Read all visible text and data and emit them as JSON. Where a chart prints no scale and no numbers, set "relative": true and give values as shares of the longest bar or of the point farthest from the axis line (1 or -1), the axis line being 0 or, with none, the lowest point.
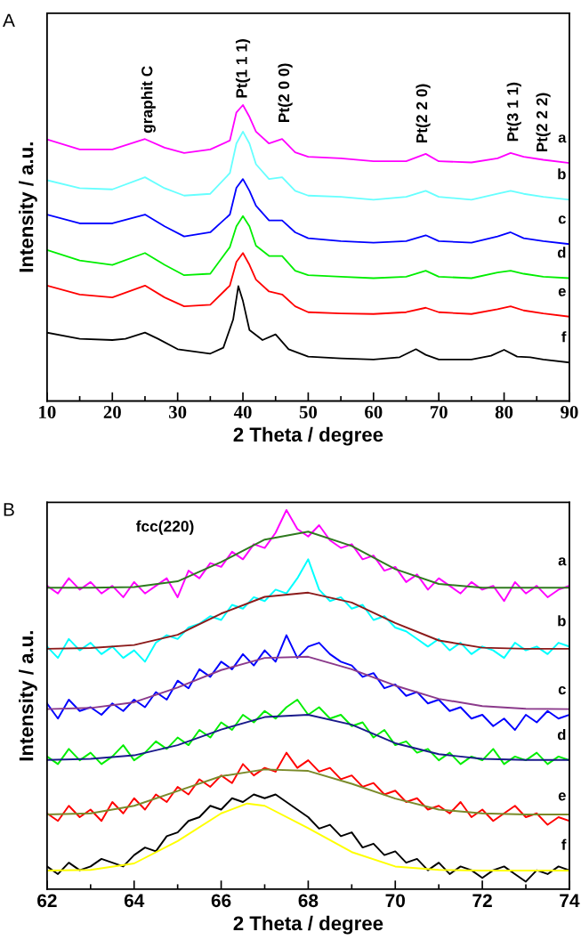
{
  "chart_data": [
    {
      "type": "line",
      "title": "A",
      "xlabel": "2 Theta / degree",
      "ylabel": "Intensity / a.u.",
      "relative": true,
      "xlim": [
        10,
        90
      ],
      "xticks": [
        10,
        20,
        30,
        40,
        50,
        60,
        70,
        80,
        90
      ],
      "tick_labels": "x",
      "grid": false,
      "legend": false,
      "annotations": [
        "graphit C",
        "Pt(1 1 1)",
        "Pt(2 0 0)",
        "Pt(2 2 0)",
        "Pt(3 1 1)",
        "Pt(2 2 2)"
      ],
      "series": [
        {
          "name": "a",
          "color": "#ff00ff",
          "x": [
            10,
            15,
            20,
            25,
            28,
            31,
            35,
            38,
            39,
            40,
            41,
            42,
            44,
            46,
            48,
            50,
            55,
            60,
            65,
            68,
            70,
            75,
            79,
            81,
            83,
            86,
            90
          ],
          "values": [
            0.884,
            0.85,
            0.85,
            0.885,
            0.856,
            0.838,
            0.85,
            0.88,
            0.975,
            1.0,
            0.96,
            0.91,
            0.87,
            0.885,
            0.84,
            0.825,
            0.82,
            0.81,
            0.81,
            0.835,
            0.81,
            0.806,
            0.82,
            0.838,
            0.825,
            0.815,
            0.804
          ]
        },
        {
          "name": "b",
          "color": "#66ffff",
          "x": [
            10,
            15,
            20,
            25,
            28,
            31,
            35,
            38,
            39,
            40,
            41,
            42,
            44,
            46,
            48,
            50,
            55,
            60,
            65,
            68,
            70,
            75,
            79,
            81,
            83,
            86,
            90
          ],
          "values": [
            0.746,
            0.719,
            0.715,
            0.756,
            0.719,
            0.694,
            0.7,
            0.77,
            0.87,
            0.91,
            0.87,
            0.8,
            0.75,
            0.756,
            0.71,
            0.694,
            0.69,
            0.68,
            0.69,
            0.71,
            0.69,
            0.68,
            0.7,
            0.71,
            0.7,
            0.69,
            0.68
          ]
        },
        {
          "name": "c",
          "color": "#0000ff",
          "x": [
            10,
            15,
            20,
            25,
            28,
            31,
            35,
            38,
            39,
            40,
            41,
            42,
            44,
            46,
            48,
            50,
            55,
            60,
            65,
            68,
            70,
            75,
            79,
            81,
            83,
            86,
            90
          ],
          "values": [
            0.63,
            0.6,
            0.6,
            0.63,
            0.59,
            0.556,
            0.57,
            0.63,
            0.72,
            0.75,
            0.71,
            0.66,
            0.61,
            0.61,
            0.57,
            0.55,
            0.54,
            0.535,
            0.54,
            0.56,
            0.54,
            0.535,
            0.556,
            0.57,
            0.55,
            0.54,
            0.53
          ]
        },
        {
          "name": "d",
          "color": "#00ee00",
          "x": [
            10,
            15,
            20,
            25,
            28,
            31,
            35,
            38,
            39,
            40,
            41,
            42,
            44,
            46,
            48,
            50,
            55,
            60,
            65,
            68,
            70,
            75,
            79,
            81,
            83,
            86,
            90
          ],
          "values": [
            0.51,
            0.475,
            0.46,
            0.5,
            0.46,
            0.425,
            0.43,
            0.52,
            0.59,
            0.625,
            0.59,
            0.525,
            0.49,
            0.49,
            0.44,
            0.425,
            0.42,
            0.415,
            0.42,
            0.44,
            0.42,
            0.415,
            0.434,
            0.44,
            0.43,
            0.42,
            0.415
          ]
        },
        {
          "name": "e",
          "color": "#ff0000",
          "x": [
            10,
            15,
            20,
            25,
            28,
            31,
            35,
            38,
            39,
            40,
            41,
            42,
            44,
            46,
            48,
            50,
            55,
            60,
            65,
            68,
            70,
            75,
            79,
            81,
            83,
            86,
            90
          ],
          "values": [
            0.39,
            0.36,
            0.35,
            0.39,
            0.35,
            0.32,
            0.325,
            0.39,
            0.47,
            0.5,
            0.46,
            0.41,
            0.37,
            0.36,
            0.32,
            0.3,
            0.296,
            0.294,
            0.3,
            0.315,
            0.3,
            0.294,
            0.31,
            0.32,
            0.306,
            0.296,
            0.285
          ]
        },
        {
          "name": "f",
          "color": "#000000",
          "x": [
            10,
            15,
            20,
            22,
            25,
            27,
            30,
            35,
            37,
            38.5,
            39.3,
            40,
            41,
            43,
            45,
            47,
            50,
            55,
            60,
            64,
            66.5,
            68,
            70,
            75,
            78,
            80,
            82,
            84,
            86,
            90
          ],
          "values": [
            0.231,
            0.21,
            0.206,
            0.21,
            0.231,
            0.21,
            0.175,
            0.16,
            0.18,
            0.275,
            0.388,
            0.338,
            0.24,
            0.206,
            0.225,
            0.175,
            0.15,
            0.144,
            0.14,
            0.148,
            0.175,
            0.156,
            0.14,
            0.14,
            0.153,
            0.173,
            0.15,
            0.148,
            0.14,
            0.13
          ]
        }
      ]
    },
    {
      "type": "line",
      "title": "B",
      "xlabel": "2 Theta / degree",
      "ylabel": "Intensity / a.u.",
      "relative": true,
      "xlim": [
        62,
        74
      ],
      "xticks": [
        62,
        64,
        66,
        68,
        70,
        72,
        74
      ],
      "tick_labels": "x",
      "grid": false,
      "legend": false,
      "annotations": [
        "fcc(220)"
      ],
      "series": [
        {
          "name": "a",
          "color": "#ff00ff",
          "x": [
            62,
            62.25,
            62.5,
            62.75,
            63,
            63.25,
            63.5,
            63.75,
            64,
            64.25,
            64.5,
            64.75,
            65,
            65.25,
            65.5,
            65.75,
            66,
            66.25,
            66.5,
            66.75,
            67,
            67.25,
            67.5,
            67.75,
            68,
            68.25,
            68.5,
            68.75,
            69,
            69.25,
            69.5,
            69.75,
            70,
            70.25,
            70.5,
            70.75,
            71,
            71.25,
            71.5,
            71.75,
            72,
            72.25,
            72.5,
            72.75,
            73,
            73.25,
            73.5,
            73.75,
            74
          ],
          "values": [
            0.8,
            0.78,
            0.82,
            0.79,
            0.81,
            0.78,
            0.8,
            0.77,
            0.81,
            0.78,
            0.8,
            0.82,
            0.77,
            0.84,
            0.82,
            0.86,
            0.85,
            0.89,
            0.87,
            0.91,
            0.9,
            0.94,
            1.0,
            0.95,
            0.93,
            0.96,
            0.92,
            0.9,
            0.91,
            0.87,
            0.88,
            0.84,
            0.85,
            0.81,
            0.83,
            0.79,
            0.82,
            0.8,
            0.78,
            0.81,
            0.79,
            0.8,
            0.76,
            0.81,
            0.78,
            0.8,
            0.77,
            0.79,
            0.8
          ]
        },
        {
          "color": "#2f7a1f",
          "x": [
            62,
            63,
            64,
            65,
            66,
            67,
            68,
            69,
            70,
            71,
            72,
            73,
            74
          ],
          "values": [
            0.795,
            0.795,
            0.797,
            0.812,
            0.863,
            0.922,
            0.943,
            0.905,
            0.844,
            0.805,
            0.795,
            0.795,
            0.795
          ]
        },
        {
          "name": "b",
          "color": "#00ffff",
          "x": [
            62,
            62.25,
            62.5,
            62.75,
            63,
            63.25,
            63.5,
            63.75,
            64,
            64.25,
            64.5,
            64.75,
            65,
            65.25,
            65.5,
            65.75,
            66,
            66.25,
            66.5,
            66.75,
            67,
            67.25,
            67.5,
            67.75,
            68,
            68.25,
            68.5,
            68.75,
            69,
            69.25,
            69.5,
            69.75,
            70,
            70.25,
            70.5,
            70.75,
            71,
            71.25,
            71.5,
            71.75,
            72,
            72.25,
            72.5,
            72.75,
            73,
            73.25,
            73.5,
            73.75,
            74
          ],
          "values": [
            0.64,
            0.61,
            0.66,
            0.63,
            0.65,
            0.62,
            0.64,
            0.61,
            0.63,
            0.6,
            0.65,
            0.67,
            0.66,
            0.69,
            0.7,
            0.72,
            0.71,
            0.75,
            0.74,
            0.77,
            0.76,
            0.79,
            0.78,
            0.82,
            0.87,
            0.79,
            0.76,
            0.77,
            0.74,
            0.75,
            0.71,
            0.72,
            0.69,
            0.68,
            0.66,
            0.64,
            0.66,
            0.63,
            0.65,
            0.62,
            0.64,
            0.63,
            0.61,
            0.65,
            0.63,
            0.64,
            0.62,
            0.65,
            0.64
          ]
        },
        {
          "color": "#8b1a1a",
          "x": [
            62,
            63,
            64,
            65,
            66,
            67,
            68,
            69,
            70,
            71,
            72,
            73,
            74
          ],
          "values": [
            0.634,
            0.636,
            0.644,
            0.671,
            0.727,
            0.771,
            0.782,
            0.756,
            0.702,
            0.656,
            0.637,
            0.634,
            0.634
          ]
        },
        {
          "name": "c",
          "color": "#0000ff",
          "x": [
            62,
            62.25,
            62.5,
            62.75,
            63,
            63.25,
            63.5,
            63.75,
            64,
            64.25,
            64.5,
            64.75,
            65,
            65.25,
            65.5,
            65.75,
            66,
            66.25,
            66.5,
            66.75,
            67,
            67.25,
            67.5,
            67.75,
            68,
            68.25,
            68.5,
            68.75,
            69,
            69.25,
            69.5,
            69.75,
            70,
            70.25,
            70.5,
            70.75,
            71,
            71.25,
            71.5,
            71.75,
            72,
            72.25,
            72.5,
            72.75,
            73,
            73.25,
            73.5,
            73.75,
            74
          ],
          "values": [
            0.49,
            0.45,
            0.5,
            0.47,
            0.48,
            0.46,
            0.49,
            0.47,
            0.5,
            0.48,
            0.52,
            0.5,
            0.55,
            0.53,
            0.58,
            0.56,
            0.6,
            0.58,
            0.62,
            0.59,
            0.63,
            0.6,
            0.67,
            0.61,
            0.64,
            0.65,
            0.62,
            0.6,
            0.59,
            0.56,
            0.57,
            0.53,
            0.54,
            0.51,
            0.52,
            0.49,
            0.5,
            0.47,
            0.48,
            0.45,
            0.46,
            0.43,
            0.45,
            0.42,
            0.46,
            0.44,
            0.47,
            0.45,
            0.46
          ]
        },
        {
          "color": "#8b3a8b",
          "x": [
            62,
            63,
            64,
            65,
            66,
            67,
            68,
            69,
            70,
            71,
            72,
            73,
            74
          ],
          "values": [
            0.475,
            0.478,
            0.493,
            0.532,
            0.578,
            0.61,
            0.613,
            0.58,
            0.537,
            0.502,
            0.483,
            0.476,
            0.475
          ]
        },
        {
          "name": "d",
          "color": "#00ee00",
          "x": [
            62,
            62.25,
            62.5,
            62.75,
            63,
            63.25,
            63.5,
            63.75,
            64,
            64.25,
            64.5,
            64.75,
            65,
            65.25,
            65.5,
            65.75,
            66,
            66.25,
            66.5,
            66.75,
            67,
            67.25,
            67.5,
            67.75,
            68,
            68.25,
            68.5,
            68.75,
            69,
            69.25,
            69.5,
            69.75,
            70,
            70.25,
            70.5,
            70.75,
            71,
            71.25,
            71.5,
            71.75,
            72,
            72.25,
            72.5,
            72.75,
            73,
            73.25,
            73.5,
            73.75,
            74
          ],
          "values": [
            0.35,
            0.33,
            0.37,
            0.34,
            0.36,
            0.33,
            0.35,
            0.38,
            0.34,
            0.36,
            0.39,
            0.37,
            0.4,
            0.38,
            0.42,
            0.4,
            0.44,
            0.42,
            0.46,
            0.44,
            0.47,
            0.45,
            0.48,
            0.5,
            0.46,
            0.48,
            0.45,
            0.46,
            0.43,
            0.44,
            0.4,
            0.42,
            0.38,
            0.39,
            0.36,
            0.37,
            0.34,
            0.36,
            0.33,
            0.35,
            0.34,
            0.37,
            0.33,
            0.35,
            0.34,
            0.36,
            0.33,
            0.35,
            0.34
          ]
        },
        {
          "color": "#1a1a8b",
          "x": [
            62,
            63,
            64,
            65,
            66,
            67,
            68,
            69,
            70,
            71,
            72,
            73,
            74
          ],
          "values": [
            0.341,
            0.344,
            0.353,
            0.38,
            0.421,
            0.454,
            0.46,
            0.434,
            0.385,
            0.356,
            0.344,
            0.341,
            0.341
          ]
        },
        {
          "name": "e",
          "color": "#ff0000",
          "x": [
            62,
            62.25,
            62.5,
            62.75,
            63,
            63.25,
            63.5,
            63.75,
            64,
            64.25,
            64.5,
            64.75,
            65,
            65.25,
            65.5,
            65.75,
            66,
            66.25,
            66.5,
            66.75,
            67,
            67.25,
            67.5,
            67.75,
            68,
            68.25,
            68.5,
            68.75,
            69,
            69.25,
            69.5,
            69.75,
            70,
            70.25,
            70.5,
            70.75,
            71,
            71.25,
            71.5,
            71.75,
            72,
            72.25,
            72.5,
            72.75,
            73,
            73.25,
            73.5,
            73.75,
            74
          ],
          "values": [
            0.2,
            0.18,
            0.22,
            0.19,
            0.21,
            0.18,
            0.23,
            0.2,
            0.24,
            0.21,
            0.25,
            0.23,
            0.27,
            0.25,
            0.29,
            0.27,
            0.3,
            0.28,
            0.33,
            0.3,
            0.32,
            0.31,
            0.36,
            0.32,
            0.34,
            0.31,
            0.32,
            0.29,
            0.3,
            0.27,
            0.28,
            0.25,
            0.26,
            0.23,
            0.24,
            0.21,
            0.22,
            0.2,
            0.23,
            0.19,
            0.21,
            0.18,
            0.2,
            0.22,
            0.19,
            0.2,
            0.17,
            0.19,
            0.18
          ]
        },
        {
          "color": "#7a8a2a",
          "x": [
            62,
            63,
            64,
            65,
            66,
            67,
            68,
            69,
            70,
            71,
            72,
            73,
            74
          ],
          "values": [
            0.197,
            0.2,
            0.22,
            0.259,
            0.298,
            0.316,
            0.312,
            0.278,
            0.239,
            0.21,
            0.2,
            0.197,
            0.197
          ]
        },
        {
          "name": "f",
          "color": "#000000",
          "x": [
            62,
            62.25,
            62.5,
            62.75,
            63,
            63.25,
            63.5,
            63.75,
            64,
            64.25,
            64.5,
            64.75,
            65,
            65.25,
            65.5,
            65.75,
            66,
            66.25,
            66.5,
            66.75,
            67,
            67.25,
            67.5,
            67.75,
            68,
            68.25,
            68.5,
            68.75,
            69,
            69.25,
            69.5,
            69.75,
            70,
            70.25,
            70.5,
            70.75,
            71,
            71.25,
            71.5,
            71.75,
            72,
            72.25,
            72.5,
            72.75,
            73,
            73.25,
            73.5,
            73.75,
            74
          ],
          "values": [
            0.06,
            0.04,
            0.07,
            0.05,
            0.06,
            0.08,
            0.07,
            0.06,
            0.09,
            0.11,
            0.1,
            0.14,
            0.15,
            0.18,
            0.19,
            0.22,
            0.21,
            0.24,
            0.23,
            0.25,
            0.24,
            0.25,
            0.23,
            0.21,
            0.19,
            0.16,
            0.17,
            0.14,
            0.15,
            0.11,
            0.12,
            0.09,
            0.1,
            0.07,
            0.08,
            0.05,
            0.07,
            0.04,
            0.06,
            0.05,
            0.03,
            0.05,
            0.06,
            0.04,
            0.02,
            0.05,
            0.04,
            0.06,
            0.05
          ]
        },
        {
          "color": "#ffff00",
          "x": [
            62,
            63,
            64,
            65,
            66,
            66.6,
            67,
            68,
            69,
            70,
            71,
            72,
            73,
            74
          ],
          "values": [
            0.049,
            0.051,
            0.068,
            0.127,
            0.2,
            0.226,
            0.22,
            0.161,
            0.098,
            0.06,
            0.051,
            0.049,
            0.049,
            0.049
          ]
        }
      ]
    }
  ]
}
